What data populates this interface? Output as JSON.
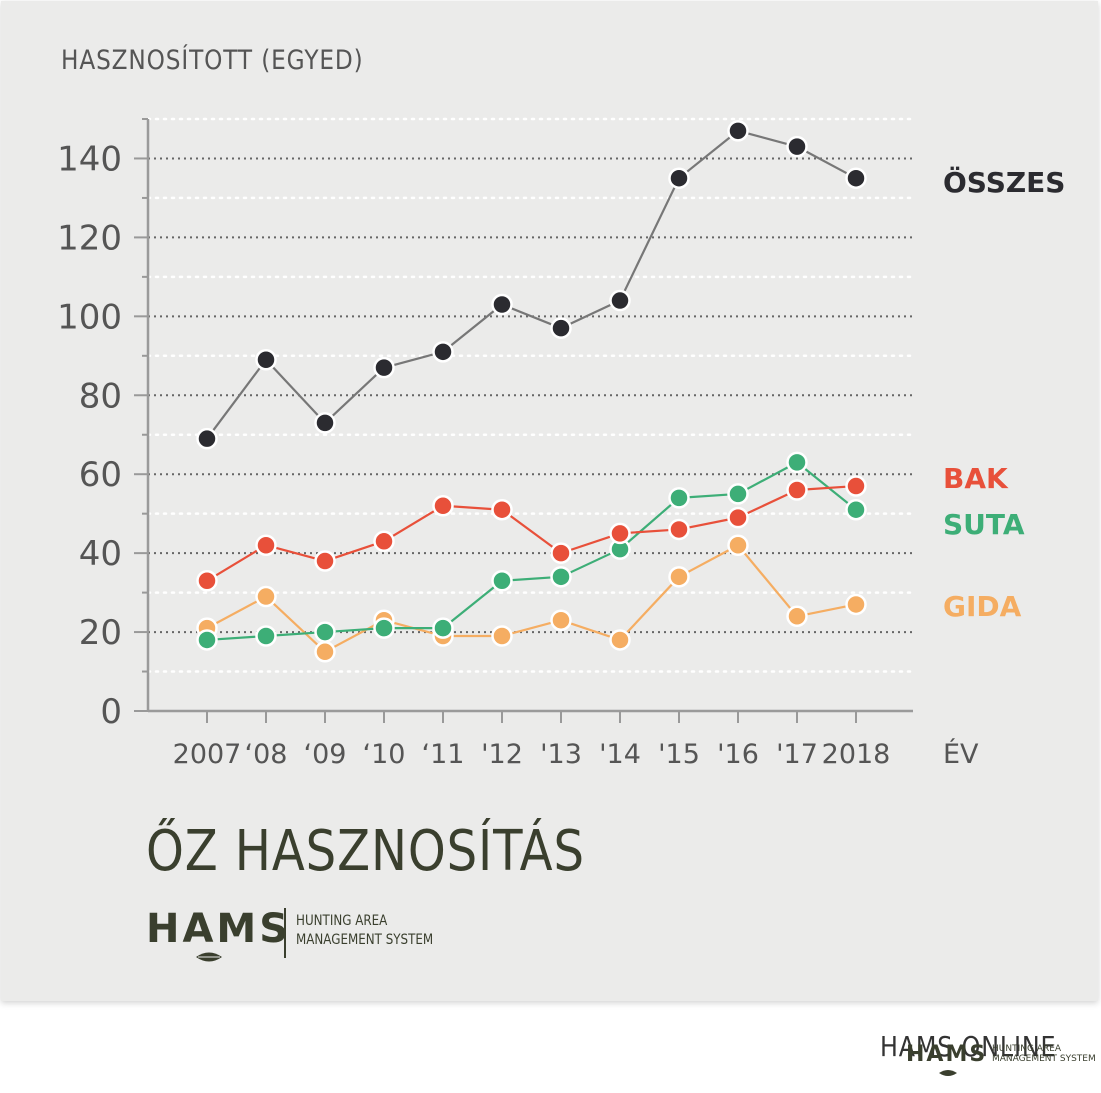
{
  "chart_data": {
    "type": "line",
    "title": "ŐZ HASZNOSÍTÁS",
    "ylabel": "HASZNOSÍTOTT (EGYED)",
    "xlabel": "ÉV",
    "categories": [
      "2007",
      "‘08",
      "‘09",
      "‘10",
      "‘11",
      "'12",
      "'13",
      "'14",
      "'15",
      "'16",
      "'17",
      "2018"
    ],
    "ylim": [
      0,
      150
    ],
    "yticks": [
      "0",
      "20",
      "40",
      "60",
      "80",
      "100",
      "120",
      "140"
    ],
    "grid": "horizontal dotted",
    "legend": "right, labels at series ends",
    "series": [
      {
        "name": "ÖSSZES",
        "color": "#2b2b30",
        "line_color": "#777777",
        "values": [
          69,
          89,
          73,
          87,
          91,
          103,
          97,
          104,
          135,
          147,
          143,
          135
        ]
      },
      {
        "name": "BAK",
        "color": "#e8503a",
        "line_color": "#e8503a",
        "values": [
          33,
          42,
          38,
          43,
          52,
          51,
          40,
          45,
          46,
          49,
          56,
          57
        ]
      },
      {
        "name": "SUTA",
        "color": "#3dae77",
        "line_color": "#3dae77",
        "values": [
          18,
          19,
          20,
          21,
          21,
          33,
          34,
          41,
          54,
          55,
          63,
          51
        ]
      },
      {
        "name": "GIDA",
        "color": "#f5ad62",
        "line_color": "#f5ad62",
        "values": [
          21,
          29,
          15,
          23,
          19,
          19,
          23,
          18,
          34,
          42,
          24,
          27
        ]
      }
    ]
  },
  "branding": {
    "logo_word": "HAMS",
    "logo_sub_1": "HUNTING AREA",
    "logo_sub_2": "MANAGEMENT SYSTEM",
    "footer_word": "HAMS ONLINE",
    "footer_logo_word": "HAMS",
    "footer_sub_1": "HUNTING AREA",
    "footer_sub_2": "MANAGEMENT SYSTEM",
    "brand_color": "#3a3f2e",
    "card_color": "#ebebea"
  },
  "icons": [
    "leaf-icon"
  ]
}
